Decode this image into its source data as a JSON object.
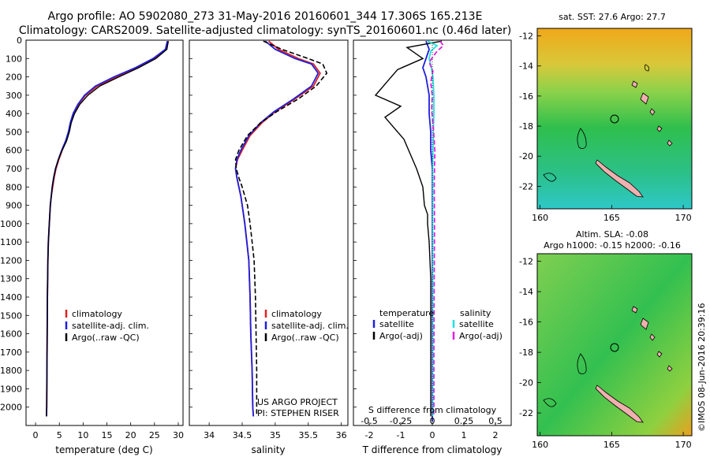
{
  "header": {
    "line1": "Argo profile: AO 5902080_273 31-May-2016 20160601_344 17.306S 165.213E",
    "line2": "Climatology: CARS2009. Satellite-adjusted climatology: synTS_20160601.nc (0.46d later)"
  },
  "depth_ticks": [
    "0",
    "100",
    "200",
    "300",
    "400",
    "500",
    "600",
    "700",
    "800",
    "900",
    "1000",
    "1100",
    "1200",
    "1300",
    "1400",
    "1500",
    "1600",
    "1700",
    "1800",
    "1900",
    "2000"
  ],
  "panel_temp": {
    "xlabel": "temperature (deg C)",
    "xticks": [
      "0",
      "5",
      "10",
      "15",
      "20",
      "25",
      "30"
    ],
    "legend": [
      "climatology",
      "satellite-adj. clim.",
      "Argo(..raw -QC)"
    ]
  },
  "panel_sal": {
    "xlabel": "salinity",
    "xticks": [
      "34",
      "34.5",
      "35",
      "35.5",
      "36"
    ],
    "legend": [
      "climatology",
      "satellite-adj. clim.",
      "Argo(..raw -QC)"
    ],
    "credit1": "US ARGO PROJECT",
    "credit2": "PI: STEPHEN RISER"
  },
  "panel_diff": {
    "xlabel_bottom": "T difference from climatology",
    "xlabel_top": "S difference from climatology",
    "xticks_T": [
      "-2",
      "-1",
      "0",
      "1",
      "2"
    ],
    "xticks_S": [
      "-0.5",
      "-0.25",
      "0",
      "0.25",
      "0.5"
    ],
    "legend_temp_title": "temperature",
    "legend_temp": [
      "satellite",
      "Argo(-adj)"
    ],
    "legend_sal_title": "salinity",
    "legend_sal": [
      "satellite",
      "Argo(-adj)"
    ]
  },
  "map_top": {
    "title": "sat. SST: 27.6 Argo: 27.7",
    "yticks": [
      "-12",
      "-14",
      "-16",
      "-18",
      "-20",
      "-22"
    ],
    "xticks": [
      "160",
      "165",
      "170"
    ]
  },
  "map_bottom": {
    "title1": "Altim. SLA: -0.08",
    "title2": "Argo h1000: -0.15 h2000: -0.16",
    "yticks": [
      "-12",
      "-14",
      "-16",
      "-18",
      "-20",
      "-22"
    ],
    "xticks": [
      "160",
      "165",
      "170"
    ]
  },
  "watermark": "©IMOS 08-Jun-2016 20:39:16",
  "colors": {
    "clim": "#e02020",
    "sat": "#1f1fdc",
    "argo": "#000000",
    "sat_s": "#20e0e0",
    "argo_s": "#e020e0"
  },
  "chart_data": [
    {
      "type": "line",
      "xlabel": "temperature (deg C)",
      "ylabel": "",
      "xlim": [
        -2,
        31
      ],
      "ylim": [
        2100,
        0
      ],
      "series": [
        {
          "name": "climatology",
          "x": [
            27.9,
            27.5,
            25,
            21.5,
            17,
            13,
            10.5,
            9,
            8,
            7.4,
            7,
            6.4,
            5.6,
            4.9,
            4.3,
            3.9,
            3.6,
            3.3,
            3.1,
            2.9,
            2.7,
            2.6,
            2.5,
            2.45,
            2.4,
            2.35,
            2.3
          ],
          "y": [
            5,
            50,
            100,
            150,
            200,
            250,
            300,
            350,
            400,
            450,
            500,
            550,
            600,
            650,
            700,
            750,
            800,
            850,
            900,
            1000,
            1100,
            1200,
            1400,
            1600,
            1800,
            2000,
            2050
          ]
        },
        {
          "name": "satellite-adj. clim.",
          "x": [
            27.7,
            27.3,
            24.7,
            21,
            16.5,
            12.6,
            10.3,
            8.9,
            7.9,
            7.3,
            6.9,
            6.3,
            5.5,
            4.8,
            4.2,
            3.8,
            3.5,
            3.3,
            3.1,
            2.9,
            2.7,
            2.6,
            2.5,
            2.45,
            2.4,
            2.35,
            2.3
          ],
          "y": [
            5,
            50,
            100,
            150,
            200,
            250,
            300,
            350,
            400,
            450,
            500,
            550,
            600,
            650,
            700,
            750,
            800,
            850,
            900,
            1000,
            1100,
            1200,
            1400,
            1600,
            1800,
            2000,
            2050
          ]
        },
        {
          "name": "Argo(..raw -QC)",
          "x": [
            27.9,
            27.6,
            25.3,
            21.7,
            17.5,
            13.5,
            11,
            9.3,
            8.2,
            7.5,
            7.1,
            6.5,
            5.6,
            4.8,
            4.2,
            3.8,
            3.5,
            3.3,
            3.1,
            2.9,
            2.7,
            2.6,
            2.5,
            2.45,
            2.4,
            2.35,
            2.3
          ],
          "y": [
            5,
            50,
            100,
            150,
            200,
            250,
            300,
            350,
            400,
            450,
            500,
            550,
            600,
            650,
            700,
            750,
            800,
            850,
            900,
            1000,
            1100,
            1200,
            1400,
            1600,
            1800,
            2000,
            2050
          ]
        }
      ]
    },
    {
      "type": "line",
      "xlabel": "salinity",
      "ylabel": "",
      "xlim": [
        33.7,
        36.1
      ],
      "ylim": [
        2100,
        0
      ],
      "series": [
        {
          "name": "climatology",
          "x": [
            34.9,
            35.05,
            35.35,
            35.58,
            35.68,
            35.58,
            35.3,
            35.0,
            34.8,
            34.62,
            34.5,
            34.43,
            34.4,
            34.42,
            34.45,
            34.48,
            34.5,
            34.52,
            34.54,
            34.57,
            34.6,
            34.62,
            34.63,
            34.65,
            34.66,
            34.67
          ],
          "y": [
            5,
            50,
            100,
            130,
            180,
            250,
            320,
            390,
            450,
            520,
            600,
            650,
            700,
            750,
            800,
            850,
            900,
            950,
            1000,
            1100,
            1200,
            1400,
            1600,
            1800,
            2000,
            2050
          ]
        },
        {
          "name": "satellite-adj. clim.",
          "x": [
            34.85,
            35.0,
            35.3,
            35.55,
            35.65,
            35.55,
            35.28,
            34.98,
            34.78,
            34.6,
            34.48,
            34.42,
            34.4,
            34.42,
            34.45,
            34.48,
            34.5,
            34.52,
            34.54,
            34.57,
            34.6,
            34.62,
            34.63,
            34.65,
            34.66,
            34.67
          ],
          "y": [
            5,
            50,
            100,
            130,
            180,
            250,
            320,
            390,
            450,
            520,
            600,
            650,
            700,
            750,
            800,
            850,
            900,
            950,
            1000,
            1100,
            1200,
            1400,
            1600,
            1800,
            2000,
            2050
          ]
        },
        {
          "name": "Argo(..raw -QC)",
          "x": [
            34.82,
            35.1,
            35.5,
            35.72,
            35.78,
            35.62,
            35.35,
            35.02,
            34.78,
            34.58,
            34.45,
            34.4,
            34.41,
            34.45,
            34.5,
            34.54,
            34.58,
            34.6,
            34.62,
            34.65,
            34.68,
            34.7,
            34.71,
            34.72,
            34.72,
            34.72
          ],
          "y": [
            5,
            50,
            100,
            130,
            180,
            250,
            320,
            390,
            450,
            520,
            600,
            650,
            700,
            750,
            800,
            850,
            900,
            950,
            1000,
            1100,
            1200,
            1400,
            1600,
            1800,
            2000,
            2050
          ]
        }
      ]
    },
    {
      "type": "line",
      "xlabel": "T difference from climatology",
      "ylabel": "",
      "xlim": [
        -2.5,
        2.5
      ],
      "ylim": [
        2100,
        0
      ],
      "series": [
        {
          "name": "temperature satellite",
          "x": [
            -0.2,
            -0.1,
            -0.2,
            -0.3,
            -0.2,
            -0.1,
            -0.1,
            -0.05,
            -0.05,
            0,
            0,
            0,
            0,
            0,
            0,
            0,
            0,
            0,
            0,
            0
          ],
          "y": [
            5,
            50,
            100,
            150,
            200,
            300,
            400,
            500,
            600,
            700,
            800,
            900,
            1000,
            1200,
            1400,
            1600,
            1800,
            2000,
            2050,
            2080
          ]
        },
        {
          "name": "temperature Argo(-adj)",
          "x": [
            0.3,
            -0.8,
            -0.3,
            -1.1,
            -1.4,
            -1.8,
            -1.0,
            -1.5,
            -1.2,
            -0.9,
            -0.7,
            -0.5,
            -0.3,
            -0.25,
            -0.15,
            -0.15,
            -0.1,
            -0.05,
            -0.05,
            -0.05,
            -0.05
          ],
          "y": [
            5,
            40,
            100,
            160,
            220,
            300,
            360,
            420,
            480,
            540,
            620,
            700,
            800,
            900,
            950,
            1000,
            1100,
            1300,
            1600,
            1900,
            2050
          ]
        },
        {
          "name": "salinity satellite",
          "x": [
            -0.15,
            0.15,
            -0.05,
            -0.1,
            -0.03,
            0.02,
            0.05,
            0.05,
            0.03,
            0.02,
            0.01,
            0.01,
            0.01,
            0.01,
            0.01,
            0.01,
            0.01
          ],
          "y": [
            5,
            30,
            60,
            100,
            150,
            200,
            300,
            400,
            500,
            600,
            700,
            900,
            1100,
            1400,
            1700,
            2000,
            2050
          ]
        },
        {
          "name": "salinity Argo(-adj)",
          "x": [
            0.25,
            0.35,
            0.15,
            -0.1,
            0.02,
            -0.05,
            0.0,
            -0.02,
            0.02,
            0.05,
            0.08,
            0.07,
            0.06,
            0.07,
            0.06,
            0.05,
            0.05
          ],
          "y": [
            5,
            30,
            60,
            120,
            170,
            230,
            300,
            380,
            450,
            520,
            600,
            700,
            800,
            1000,
            1300,
            1700,
            2050
          ]
        }
      ]
    }
  ]
}
